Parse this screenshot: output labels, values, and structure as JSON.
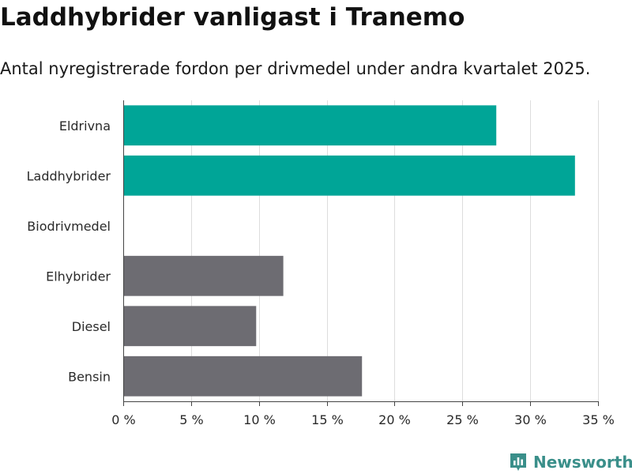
{
  "header": {
    "title": "Laddhybrider vanligast i Tranemo",
    "subtitle": "Antal nyregistrerade fordon per drivmedel under andra kvartalet 2025."
  },
  "brand": {
    "name": "Newsworthy",
    "logo_icon": "bar-chart-icon"
  },
  "colors": {
    "highlight": "#00a597",
    "other": "#6d6c72",
    "grid": "#dddddd",
    "brand": "#3a8f8a"
  },
  "chart_data": {
    "type": "bar",
    "orientation": "horizontal",
    "title": "Laddhybrider vanligast i Tranemo",
    "subtitle": "Antal nyregistrerade fordon per drivmedel under andra kvartalet 2025.",
    "categories": [
      "Eldrivna",
      "Laddhybrider",
      "Biodrivmedel",
      "Elhybrider",
      "Diesel",
      "Bensin"
    ],
    "values": [
      27.5,
      33.3,
      0,
      11.8,
      9.8,
      17.6
    ],
    "highlighted": [
      true,
      true,
      false,
      false,
      false,
      false
    ],
    "unit": "%",
    "xlim": [
      0,
      35
    ],
    "ticks": [
      0,
      5,
      10,
      15,
      20,
      25,
      30,
      35
    ],
    "tick_labels": [
      "0 %",
      "5 %",
      "10 %",
      "15 %",
      "20 %",
      "25 %",
      "30 %",
      "35 %"
    ],
    "grid": "vertical"
  }
}
